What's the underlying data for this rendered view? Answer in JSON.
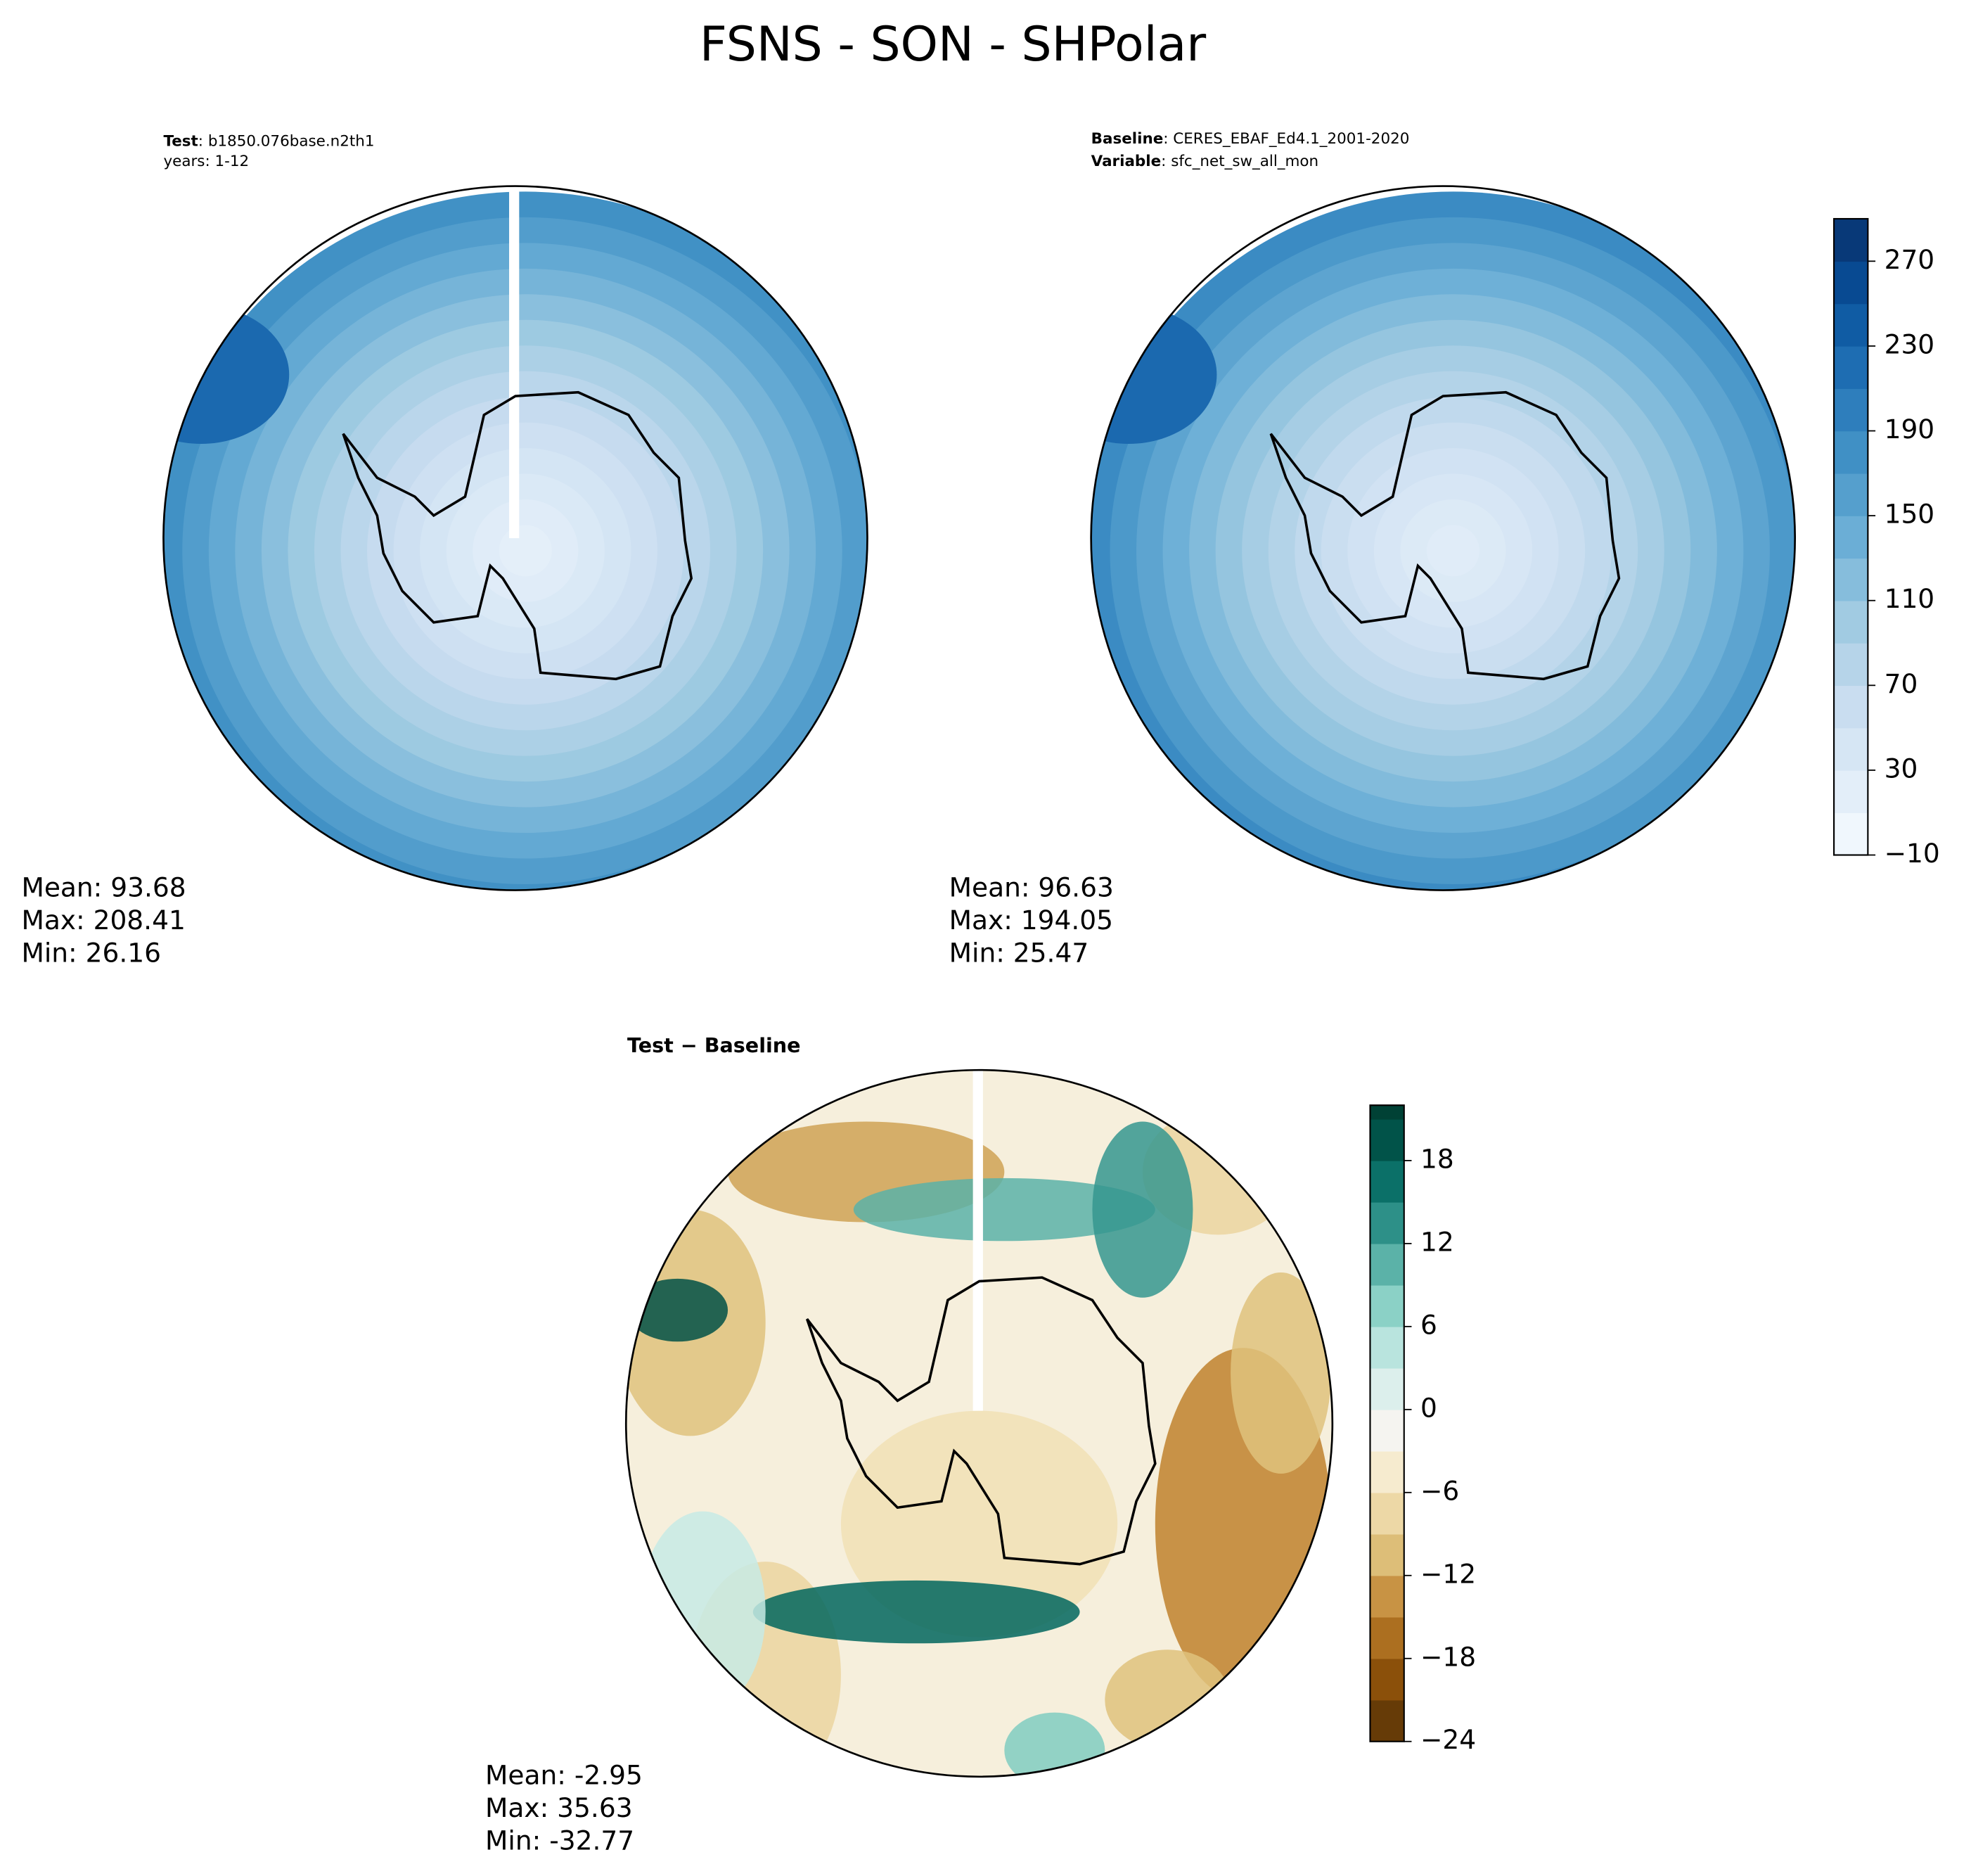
{
  "title": "FSNS - SON - SHPolar",
  "panels": [
    {
      "lines": [
        {
          "key": "Test",
          "text": ": b1850.076base.n2th1"
        },
        {
          "text": "years: 1-12"
        }
      ],
      "stats": [
        "Mean: 93.68",
        "Max: 208.41",
        "Min: 26.16"
      ]
    },
    {
      "lines": [
        {
          "key": "Baseline",
          "text": ": CERES_EBAF_Ed4.1_2001-2020"
        },
        {
          "key": "Variable",
          "text": ": sfc_net_sw_all_mon"
        }
      ],
      "stats": [
        "Mean: 96.63",
        "Max: 194.05",
        "Min: 25.47"
      ]
    },
    {
      "lines": [
        {
          "key": "Test − Baseline"
        }
      ],
      "stats": [
        "Mean: -2.95",
        "Max: 35.63",
        "Min: -32.77"
      ]
    }
  ],
  "colorbars": [
    {
      "lim": [
        -10,
        290
      ],
      "ticks": [
        {
          "value": -10,
          "label": "−10"
        },
        30,
        70,
        110,
        150,
        190,
        230,
        270
      ],
      "colormap": [
        "#f7fbff",
        "#deebf7",
        "#c6dbef",
        "#9ecae1",
        "#6baed6",
        "#4292c6",
        "#2171b5",
        "#08519c",
        "#08306b"
      ]
    },
    {
      "lim": [
        -24,
        22
      ],
      "ticks": [
        {
          "value": -24,
          "label": "−24"
        },
        {
          "value": -18,
          "label": "−18"
        },
        {
          "value": -12,
          "label": "−12"
        },
        {
          "value": -6,
          "label": "−6"
        },
        0,
        6,
        12,
        18
      ],
      "colormap": [
        "#543005",
        "#8c510a",
        "#bf812d",
        "#dfc27d",
        "#f6e8c3",
        "#f5f5f5",
        "#c7eae5",
        "#80cdc1",
        "#35978f",
        "#01665e",
        "#003c30"
      ]
    }
  ]
}
